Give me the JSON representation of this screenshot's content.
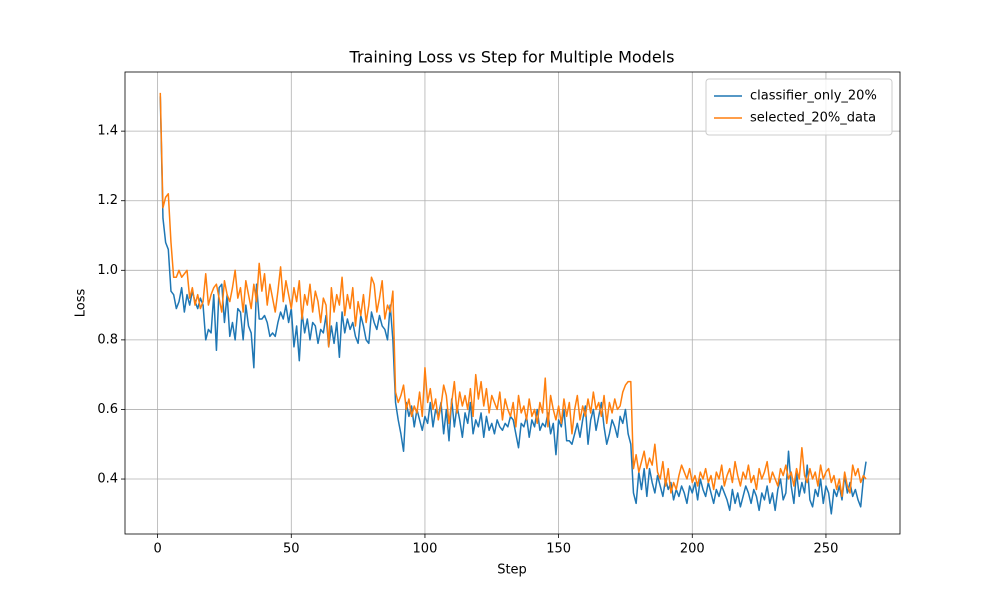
{
  "chart_data": {
    "type": "line",
    "title": "Training Loss vs Step for Multiple Models",
    "xlabel": "Step",
    "ylabel": "Loss",
    "x": [
      1,
      2,
      3,
      4,
      5,
      6,
      7,
      8,
      9,
      10,
      11,
      12,
      13,
      14,
      15,
      16,
      17,
      18,
      19,
      20,
      21,
      22,
      23,
      24,
      25,
      26,
      27,
      28,
      29,
      30,
      31,
      32,
      33,
      34,
      35,
      36,
      37,
      38,
      39,
      40,
      41,
      42,
      43,
      44,
      45,
      46,
      47,
      48,
      49,
      50,
      51,
      52,
      53,
      54,
      55,
      56,
      57,
      58,
      59,
      60,
      61,
      62,
      63,
      64,
      65,
      66,
      67,
      68,
      69,
      70,
      71,
      72,
      73,
      74,
      75,
      76,
      77,
      78,
      79,
      80,
      81,
      82,
      83,
      84,
      85,
      86,
      87,
      88,
      89,
      90,
      91,
      92,
      93,
      94,
      95,
      96,
      97,
      98,
      99,
      100,
      101,
      102,
      103,
      104,
      105,
      106,
      107,
      108,
      109,
      110,
      111,
      112,
      113,
      114,
      115,
      116,
      117,
      118,
      119,
      120,
      121,
      122,
      123,
      124,
      125,
      126,
      127,
      128,
      129,
      130,
      131,
      132,
      133,
      134,
      135,
      136,
      137,
      138,
      139,
      140,
      141,
      142,
      143,
      144,
      145,
      146,
      147,
      148,
      149,
      150,
      151,
      152,
      153,
      154,
      155,
      156,
      157,
      158,
      159,
      160,
      161,
      162,
      163,
      164,
      165,
      166,
      167,
      168,
      169,
      170,
      171,
      172,
      173,
      174,
      175,
      176,
      177,
      178,
      179,
      180,
      181,
      182,
      183,
      184,
      185,
      186,
      187,
      188,
      189,
      190,
      191,
      192,
      193,
      194,
      195,
      196,
      197,
      198,
      199,
      200,
      201,
      202,
      203,
      204,
      205,
      206,
      207,
      208,
      209,
      210,
      211,
      212,
      213,
      214,
      215,
      216,
      217,
      218,
      219,
      220,
      221,
      222,
      223,
      224,
      225,
      226,
      227,
      228,
      229,
      230,
      231,
      232,
      233,
      234,
      235,
      236,
      237,
      238,
      239,
      240,
      241,
      242,
      243,
      244,
      245,
      246,
      247,
      248,
      249,
      250,
      251,
      252,
      253,
      254,
      255,
      256,
      257,
      258,
      259,
      260,
      261,
      262,
      263,
      264,
      265
    ],
    "series": [
      {
        "name": "classifier_only_20%",
        "color": "#1f77b4",
        "values": [
          1.5,
          1.15,
          1.08,
          1.06,
          0.94,
          0.93,
          0.89,
          0.91,
          0.95,
          0.88,
          0.93,
          0.9,
          0.94,
          0.91,
          0.89,
          0.92,
          0.9,
          0.8,
          0.83,
          0.82,
          0.93,
          0.77,
          0.95,
          0.96,
          0.85,
          0.93,
          0.81,
          0.85,
          0.8,
          0.89,
          0.88,
          0.8,
          0.9,
          0.84,
          0.82,
          0.72,
          0.96,
          0.86,
          0.86,
          0.87,
          0.85,
          0.81,
          0.82,
          0.81,
          0.85,
          0.88,
          0.86,
          0.9,
          0.85,
          0.89,
          0.78,
          0.84,
          0.74,
          0.88,
          0.82,
          0.86,
          0.8,
          0.85,
          0.84,
          0.79,
          0.83,
          0.82,
          0.87,
          0.78,
          0.84,
          0.79,
          0.85,
          0.75,
          0.88,
          0.82,
          0.86,
          0.83,
          0.85,
          0.81,
          0.79,
          0.87,
          0.84,
          0.8,
          0.79,
          0.88,
          0.85,
          0.83,
          0.87,
          0.84,
          0.83,
          0.8,
          0.9,
          0.8,
          0.62,
          0.57,
          0.53,
          0.48,
          0.62,
          0.58,
          0.61,
          0.55,
          0.6,
          0.57,
          0.54,
          0.58,
          0.56,
          0.62,
          0.55,
          0.6,
          0.58,
          0.62,
          0.53,
          0.6,
          0.51,
          0.63,
          0.55,
          0.61,
          0.57,
          0.52,
          0.59,
          0.56,
          0.62,
          0.53,
          0.57,
          0.55,
          0.59,
          0.52,
          0.58,
          0.54,
          0.56,
          0.53,
          0.57,
          0.55,
          0.54,
          0.56,
          0.55,
          0.58,
          0.57,
          0.53,
          0.49,
          0.56,
          0.55,
          0.58,
          0.52,
          0.57,
          0.55,
          0.6,
          0.54,
          0.56,
          0.55,
          0.59,
          0.53,
          0.56,
          0.47,
          0.57,
          0.55,
          0.6,
          0.51,
          0.51,
          0.5,
          0.53,
          0.56,
          0.52,
          0.57,
          0.61,
          0.5,
          0.57,
          0.6,
          0.54,
          0.58,
          0.62,
          0.55,
          0.5,
          0.53,
          0.57,
          0.55,
          0.52,
          0.58,
          0.56,
          0.6,
          0.53,
          0.5,
          0.36,
          0.33,
          0.42,
          0.37,
          0.43,
          0.35,
          0.43,
          0.39,
          0.36,
          0.41,
          0.38,
          0.35,
          0.4,
          0.37,
          0.39,
          0.34,
          0.37,
          0.35,
          0.38,
          0.36,
          0.33,
          0.38,
          0.36,
          0.39,
          0.34,
          0.4,
          0.37,
          0.35,
          0.39,
          0.36,
          0.33,
          0.37,
          0.35,
          0.38,
          0.36,
          0.34,
          0.31,
          0.37,
          0.33,
          0.36,
          0.32,
          0.35,
          0.38,
          0.36,
          0.33,
          0.37,
          0.35,
          0.31,
          0.36,
          0.34,
          0.38,
          0.33,
          0.36,
          0.31,
          0.37,
          0.4,
          0.34,
          0.36,
          0.48,
          0.38,
          0.33,
          0.42,
          0.35,
          0.39,
          0.36,
          0.44,
          0.34,
          0.32,
          0.37,
          0.35,
          0.4,
          0.33,
          0.38,
          0.36,
          0.3,
          0.37,
          0.35,
          0.38,
          0.34,
          0.41,
          0.36,
          0.39,
          0.35,
          0.37,
          0.34,
          0.32,
          0.4,
          0.45
        ]
      },
      {
        "name": "selected_20%_data",
        "color": "#ff7f0e",
        "values": [
          1.51,
          1.18,
          1.21,
          1.22,
          1.08,
          0.98,
          0.98,
          1.0,
          0.98,
          0.99,
          1.0,
          0.92,
          0.95,
          0.9,
          0.93,
          0.89,
          0.91,
          0.99,
          0.9,
          0.93,
          0.95,
          0.96,
          0.92,
          0.88,
          0.97,
          0.93,
          0.91,
          0.95,
          1.0,
          0.92,
          0.95,
          0.88,
          0.97,
          0.93,
          0.89,
          0.96,
          0.91,
          1.02,
          0.94,
          0.99,
          0.9,
          0.96,
          0.92,
          0.88,
          0.94,
          1.01,
          0.91,
          0.97,
          0.93,
          0.89,
          0.95,
          0.91,
          0.97,
          0.86,
          0.93,
          0.9,
          0.96,
          0.88,
          0.94,
          0.91,
          0.85,
          0.92,
          0.9,
          0.78,
          0.95,
          0.88,
          0.93,
          0.9,
          0.98,
          0.87,
          0.93,
          0.89,
          0.95,
          0.84,
          0.91,
          0.87,
          0.93,
          0.85,
          0.9,
          0.98,
          0.96,
          0.88,
          0.92,
          0.97,
          0.86,
          0.9,
          0.88,
          0.94,
          0.65,
          0.62,
          0.64,
          0.67,
          0.6,
          0.63,
          0.58,
          0.61,
          0.59,
          0.65,
          0.58,
          0.72,
          0.62,
          0.66,
          0.6,
          0.63,
          0.57,
          0.61,
          0.67,
          0.64,
          0.56,
          0.62,
          0.68,
          0.59,
          0.65,
          0.61,
          0.64,
          0.6,
          0.66,
          0.58,
          0.7,
          0.63,
          0.68,
          0.61,
          0.66,
          0.59,
          0.64,
          0.62,
          0.6,
          0.65,
          0.57,
          0.63,
          0.6,
          0.58,
          0.62,
          0.55,
          0.64,
          0.59,
          0.61,
          0.57,
          0.63,
          0.58,
          0.6,
          0.56,
          0.62,
          0.59,
          0.69,
          0.55,
          0.64,
          0.6,
          0.57,
          0.61,
          0.56,
          0.63,
          0.58,
          0.62,
          0.53,
          0.6,
          0.64,
          0.57,
          0.61,
          0.58,
          0.63,
          0.59,
          0.65,
          0.6,
          0.62,
          0.58,
          0.64,
          0.56,
          0.62,
          0.59,
          0.63,
          0.6,
          0.61,
          0.65,
          0.67,
          0.68,
          0.68,
          0.43,
          0.47,
          0.42,
          0.45,
          0.48,
          0.43,
          0.46,
          0.44,
          0.5,
          0.42,
          0.4,
          0.45,
          0.38,
          0.43,
          0.36,
          0.39,
          0.37,
          0.41,
          0.44,
          0.42,
          0.4,
          0.43,
          0.39,
          0.41,
          0.38,
          0.42,
          0.4,
          0.43,
          0.39,
          0.41,
          0.37,
          0.42,
          0.4,
          0.44,
          0.38,
          0.41,
          0.43,
          0.39,
          0.45,
          0.41,
          0.38,
          0.42,
          0.4,
          0.44,
          0.39,
          0.41,
          0.37,
          0.43,
          0.4,
          0.42,
          0.45,
          0.39,
          0.42,
          0.4,
          0.38,
          0.43,
          0.41,
          0.44,
          0.4,
          0.42,
          0.38,
          0.43,
          0.4,
          0.49,
          0.41,
          0.39,
          0.43,
          0.4,
          0.42,
          0.38,
          0.44,
          0.4,
          0.42,
          0.43,
          0.39,
          0.41,
          0.37,
          0.4,
          0.35,
          0.42,
          0.38,
          0.36,
          0.44,
          0.41,
          0.43,
          0.39,
          0.41,
          0.4
        ]
      }
    ],
    "xlim": [
      -12.2,
      277.7
    ],
    "ylim": [
      0.242,
      1.57
    ],
    "xticks": [
      0,
      50,
      100,
      150,
      200,
      250
    ],
    "yticks": [
      {
        "value": 0.4,
        "label": "0.4"
      },
      {
        "value": 0.6,
        "label": "0.6"
      },
      {
        "value": 0.8,
        "label": "0.8"
      },
      {
        "value": 1.0,
        "label": "1.0"
      },
      {
        "value": 1.2,
        "label": "1.2"
      },
      {
        "value": 1.4,
        "label": "1.4"
      }
    ],
    "grid": true,
    "legend": "upper right"
  }
}
